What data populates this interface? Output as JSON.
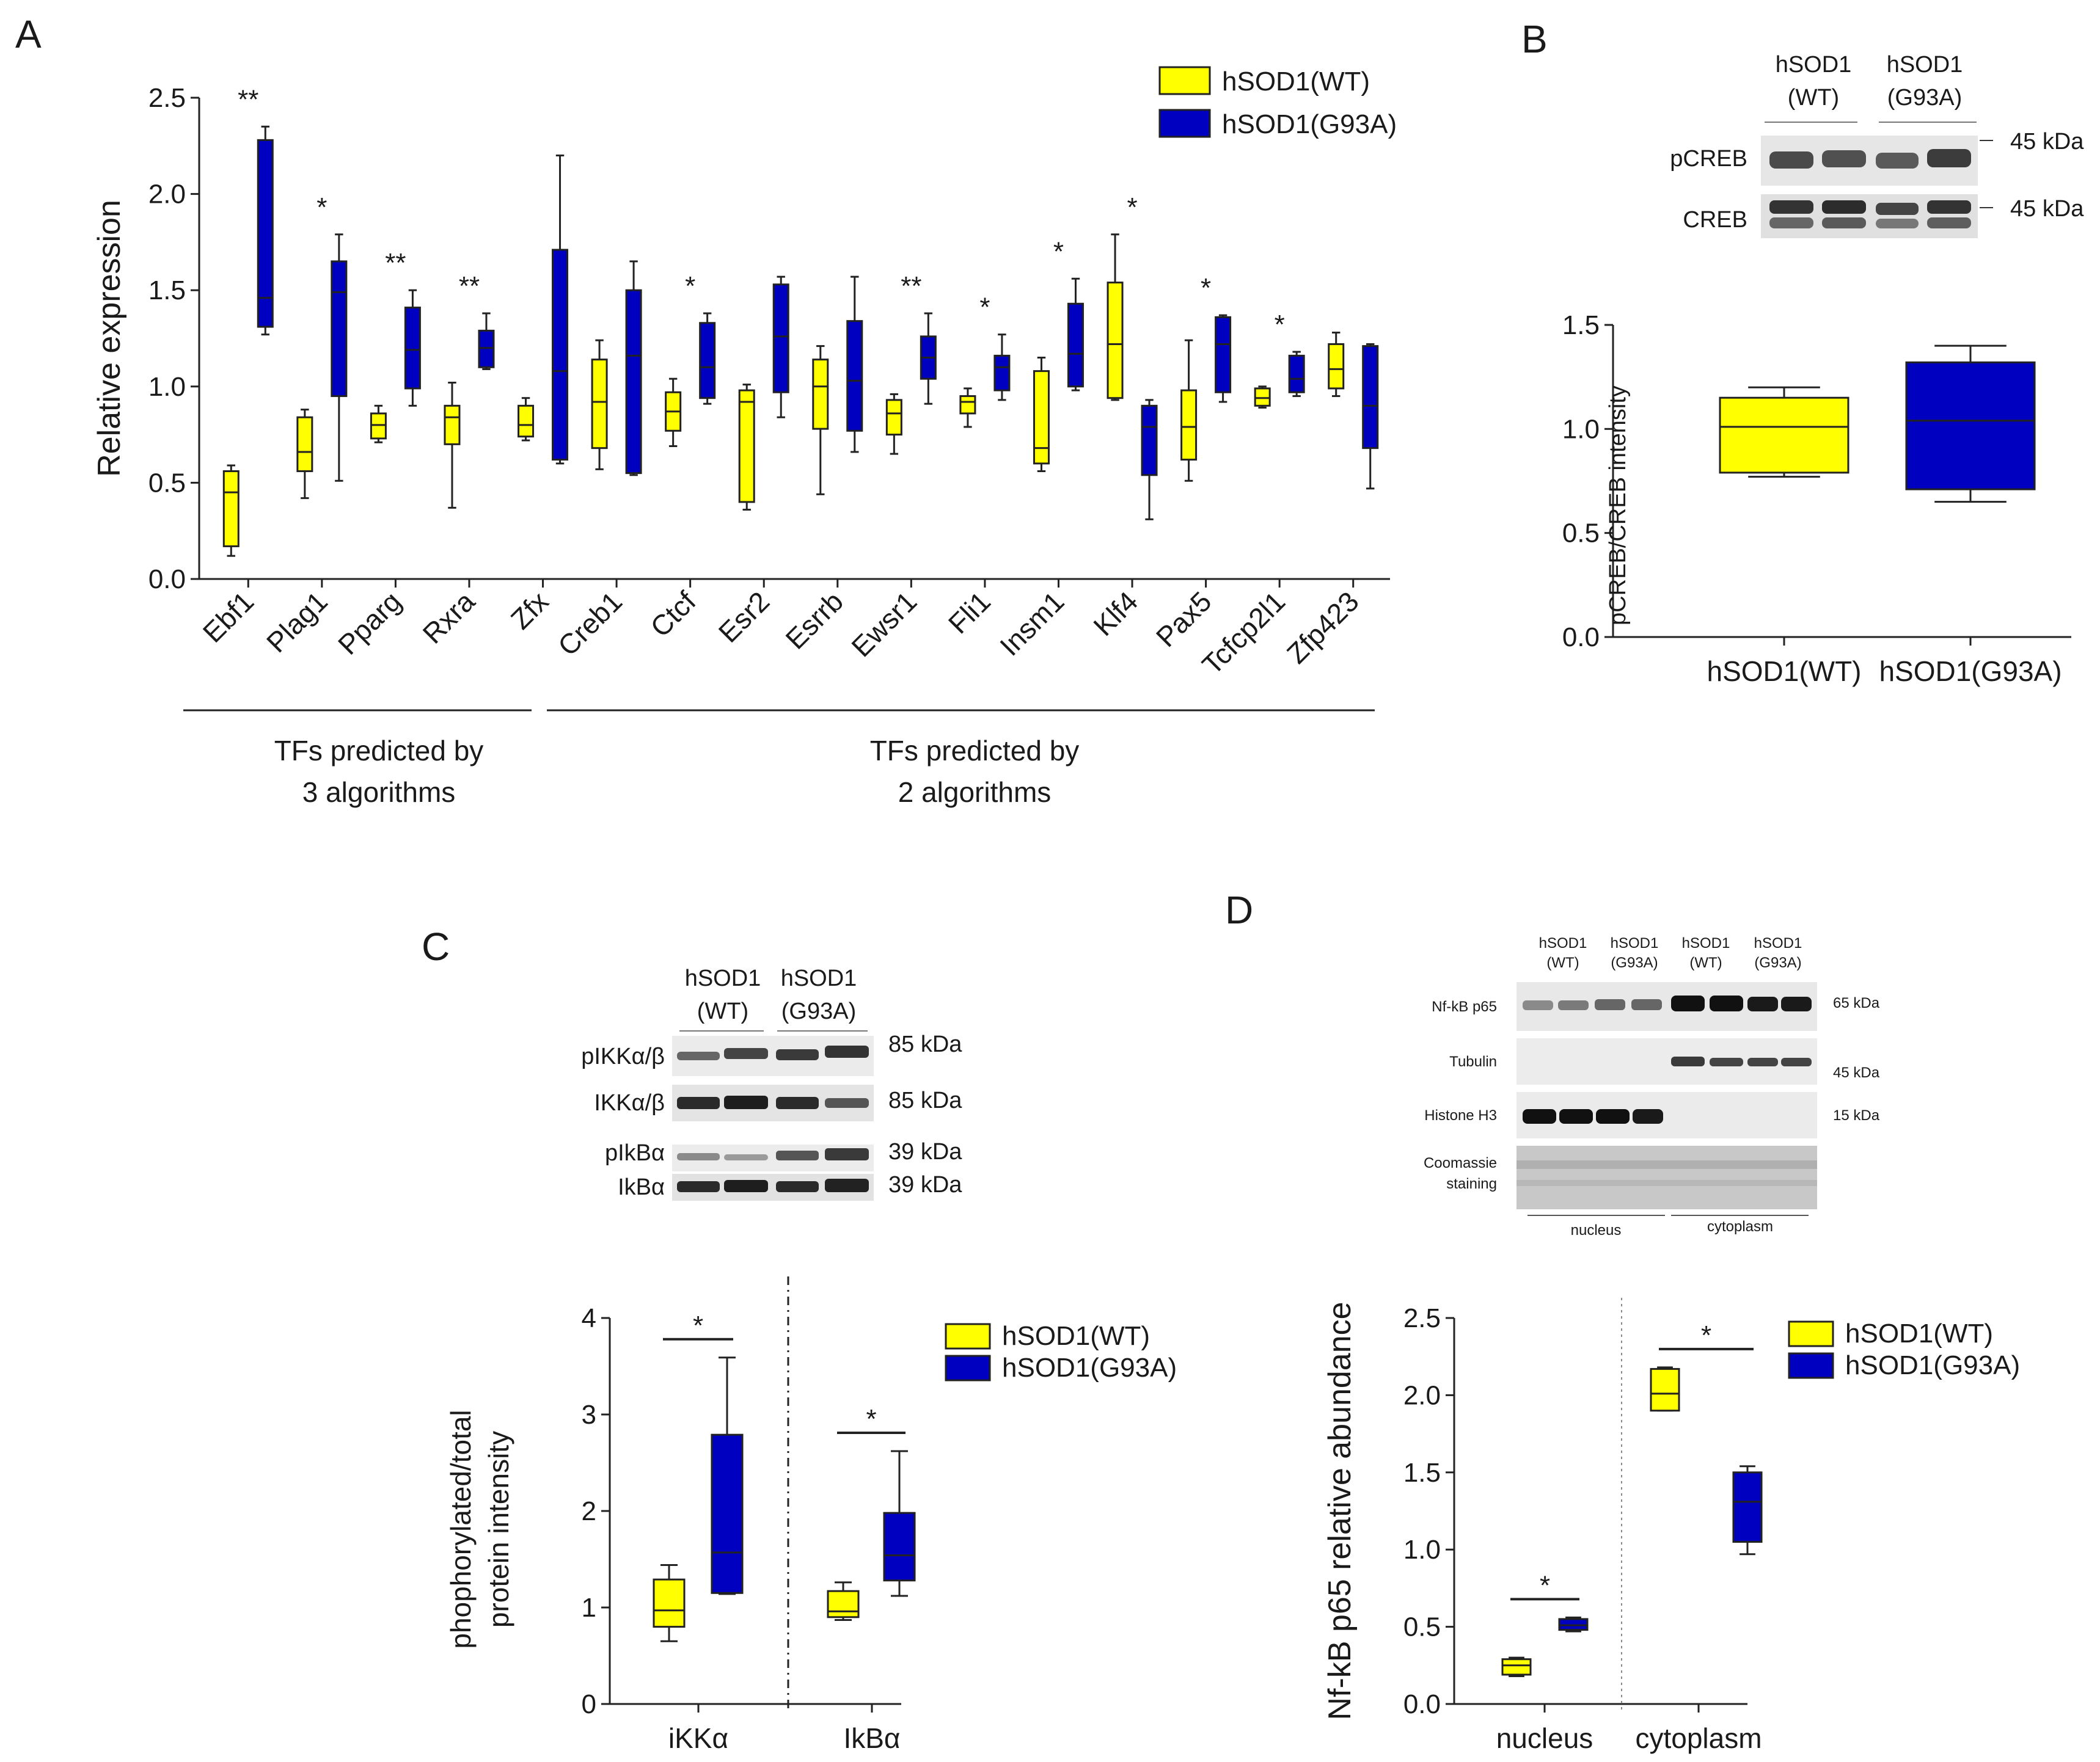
{
  "colors": {
    "wt": "#ffff00",
    "g93a": "#0000c0",
    "axis": "#222222",
    "band": "#333333"
  },
  "legend": {
    "wt": "hSOD1(WT)",
    "g93a": "hSOD1(G93A)"
  },
  "panels": {
    "A": {
      "letter": "A",
      "group1_label": [
        "TFs predicted by",
        "3 algorithms"
      ],
      "group2_label": [
        "TFs predicted by",
        "2 algorithms"
      ]
    },
    "B": {
      "letter": "B",
      "lane_headers": [
        "hSOD1",
        "(WT)",
        "hSOD1",
        "(G93A)"
      ],
      "rows": [
        "pCREB",
        "CREB"
      ],
      "markers": [
        "45 kDa",
        "45 kDa"
      ]
    },
    "C": {
      "letter": "C",
      "lane_headers": [
        "hSOD1",
        "(WT)",
        "hSOD1",
        "(G93A)"
      ],
      "rows": [
        "pIKKα/β",
        "IKKα/β",
        "pIkBα",
        "IkBα"
      ],
      "markers": [
        "85 kDa",
        "85 kDa",
        "39 kDa",
        "39 kDa"
      ]
    },
    "D": {
      "letter": "D",
      "lane_headers": [
        "hSOD1",
        "(WT)",
        "hSOD1",
        "(G93A)",
        "hSOD1",
        "(WT)",
        "hSOD1",
        "(G93A)"
      ],
      "rows": [
        "Nf-kB p65",
        "Tubulin",
        "Histone H3",
        "Coomassie",
        "staining"
      ],
      "markers": [
        "65 kDa",
        "45 kDa",
        "15 kDa"
      ],
      "fractions": [
        "nucleus",
        "cytoplasm"
      ]
    }
  },
  "chart_data": [
    {
      "panel": "A",
      "type": "box",
      "ylabel": "Relative expression",
      "ylim": [
        0,
        2.5
      ],
      "yticks": [
        "0.0",
        "0.5",
        "1.0",
        "1.5",
        "2.0",
        "2.5"
      ],
      "categories": [
        "Ebf1",
        "Plag1",
        "Pparg",
        "Rxra",
        "Zfx",
        "Creb1",
        "Ctcf",
        "Esr2",
        "Esrrb",
        "Ewsr1",
        "Fli1",
        "Insm1",
        "Klf4",
        "Pax5",
        "Tcfcp2l1",
        "Zfp423"
      ],
      "significance": [
        "**",
        "*",
        "**",
        "**",
        "",
        "",
        "*",
        "",
        "",
        "**",
        "*",
        "*",
        "*",
        "*",
        "*",
        ""
      ],
      "series": [
        {
          "name": "hSOD1(WT)",
          "boxes": [
            [
              0.12,
              0.17,
              0.45,
              0.56,
              0.59
            ],
            [
              0.42,
              0.56,
              0.66,
              0.84,
              0.88
            ],
            [
              0.71,
              0.73,
              0.8,
              0.86,
              0.9
            ],
            [
              0.37,
              0.7,
              0.84,
              0.9,
              1.02
            ],
            [
              0.72,
              0.74,
              0.8,
              0.9,
              0.94
            ],
            [
              0.57,
              0.68,
              0.92,
              1.14,
              1.24
            ],
            [
              0.69,
              0.77,
              0.87,
              0.97,
              1.04
            ],
            [
              0.36,
              0.4,
              0.92,
              0.98,
              1.01
            ],
            [
              0.44,
              0.78,
              1.0,
              1.14,
              1.21
            ],
            [
              0.65,
              0.75,
              0.86,
              0.93,
              0.96
            ],
            [
              0.79,
              0.86,
              0.92,
              0.95,
              0.99
            ],
            [
              0.56,
              0.6,
              0.68,
              1.08,
              1.15
            ],
            [
              0.93,
              0.94,
              1.22,
              1.54,
              1.79
            ],
            [
              0.51,
              0.62,
              0.79,
              0.98,
              1.24
            ],
            [
              0.89,
              0.9,
              0.94,
              0.99,
              1.0
            ],
            [
              0.95,
              0.99,
              1.09,
              1.22,
              1.28
            ]
          ]
        },
        {
          "name": "hSOD1(G93A)",
          "boxes": [
            [
              1.27,
              1.31,
              1.46,
              2.28,
              2.35
            ],
            [
              0.51,
              0.95,
              1.49,
              1.65,
              1.79
            ],
            [
              0.9,
              0.99,
              1.19,
              1.41,
              1.5
            ],
            [
              1.09,
              1.1,
              1.2,
              1.29,
              1.38
            ],
            [
              0.6,
              0.62,
              1.08,
              1.71,
              2.2
            ],
            [
              0.54,
              0.55,
              1.16,
              1.5,
              1.65
            ],
            [
              0.91,
              0.94,
              1.1,
              1.33,
              1.38
            ],
            [
              0.84,
              0.97,
              1.26,
              1.53,
              1.57
            ],
            [
              0.66,
              0.77,
              1.03,
              1.34,
              1.57
            ],
            [
              0.91,
              1.04,
              1.15,
              1.26,
              1.38
            ],
            [
              0.93,
              0.98,
              1.1,
              1.16,
              1.27
            ],
            [
              0.98,
              1.0,
              1.17,
              1.43,
              1.56
            ],
            [
              0.31,
              0.54,
              0.79,
              0.9,
              0.93
            ],
            [
              0.92,
              0.97,
              1.22,
              1.36,
              1.37
            ],
            [
              0.95,
              0.97,
              1.04,
              1.16,
              1.18
            ],
            [
              0.47,
              0.68,
              0.9,
              1.21,
              1.22
            ]
          ]
        }
      ]
    },
    {
      "panel": "B",
      "type": "box",
      "ylabel": "pCREB/CREB intensity",
      "ylim": [
        0,
        1.5
      ],
      "yticks": [
        "0.0",
        "0.5",
        "1.0",
        "1.5"
      ],
      "categories": [
        "hSOD1(WT)",
        "hSOD1(G93A)"
      ],
      "boxes": [
        [
          0.77,
          0.79,
          1.01,
          1.15,
          1.2
        ],
        [
          0.65,
          0.71,
          1.04,
          1.32,
          1.4
        ]
      ]
    },
    {
      "panel": "C",
      "type": "box",
      "ylabel": [
        "phophorylated/total",
        "protein intensity"
      ],
      "ylim": [
        0,
        4
      ],
      "yticks": [
        "0",
        "1",
        "2",
        "3",
        "4"
      ],
      "categories": [
        "iKKα",
        "IkBα"
      ],
      "significance": [
        "*",
        "*"
      ],
      "series": [
        {
          "name": "hSOD1(WT)",
          "boxes": [
            [
              0.65,
              0.8,
              0.97,
              1.29,
              1.44
            ],
            [
              0.87,
              0.9,
              0.96,
              1.17,
              1.26
            ]
          ]
        },
        {
          "name": "hSOD1(G93A)",
          "boxes": [
            [
              1.14,
              1.15,
              1.57,
              2.79,
              3.59
            ],
            [
              1.12,
              1.28,
              1.54,
              1.98,
              2.62
            ]
          ]
        }
      ]
    },
    {
      "panel": "D",
      "type": "box",
      "ylabel": "Nf-kB p65 relative abundance",
      "ylim": [
        0,
        2.5
      ],
      "yticks": [
        "0.0",
        "0.5",
        "1.0",
        "1.5",
        "2.0",
        "2.5"
      ],
      "categories": [
        "nucleus",
        "cytoplasm"
      ],
      "significance": [
        "*",
        "*"
      ],
      "series": [
        {
          "name": "hSOD1(WT)",
          "boxes": [
            [
              0.18,
              0.19,
              0.25,
              0.29,
              0.3
            ],
            [
              1.9,
              1.9,
              2.01,
              2.17,
              2.18
            ]
          ]
        },
        {
          "name": "hSOD1(G93A)",
          "boxes": [
            [
              0.47,
              0.48,
              0.51,
              0.55,
              0.56
            ],
            [
              0.97,
              1.05,
              1.31,
              1.5,
              1.54
            ]
          ]
        }
      ]
    }
  ]
}
